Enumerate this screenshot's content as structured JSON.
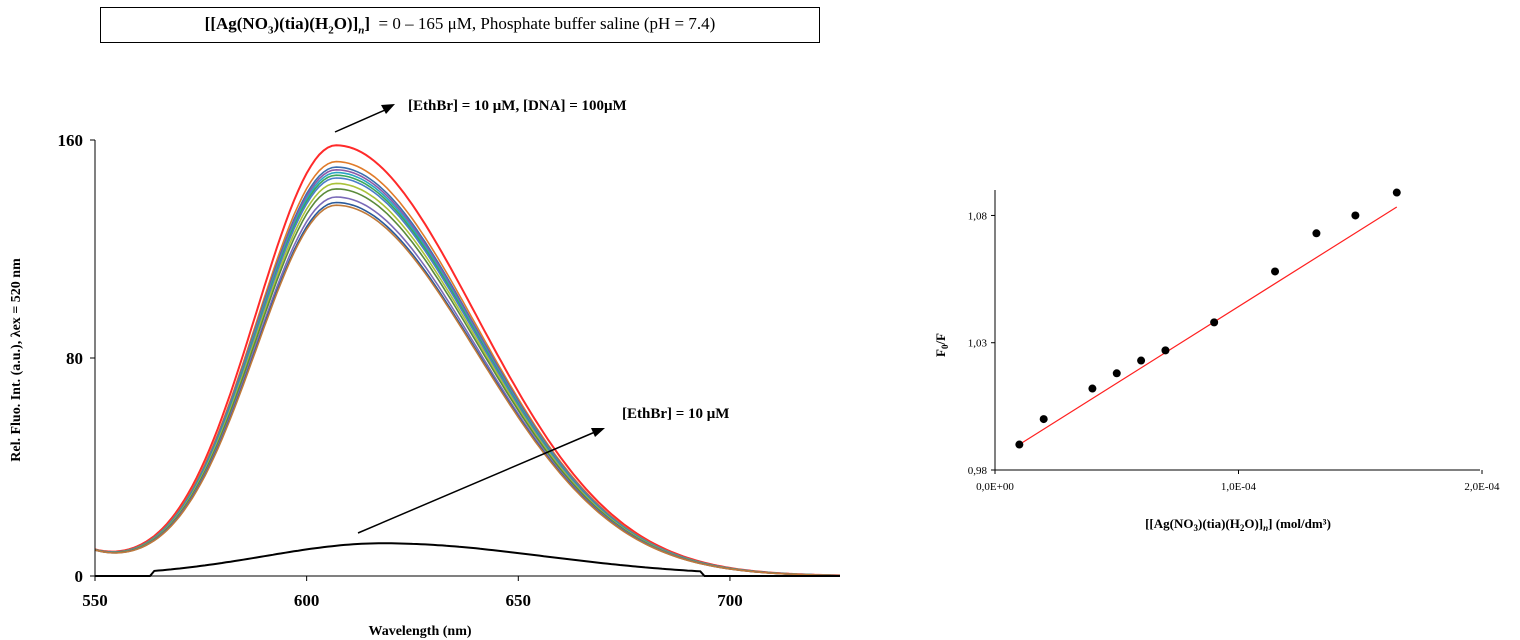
{
  "header": {
    "formula_prefix": "[[Ag(NO",
    "formula_sub1": "3",
    "formula_mid": ")(tia)(H",
    "formula_sub2": "2",
    "formula_suffix": "O)]",
    "formula_sub3": "n",
    "formula_end": "]",
    "conditions": "= 0 – 165 μM, Phosphate buffer saline (pH = 7.4)"
  },
  "chart_data": [
    {
      "type": "line",
      "xlabel": "Wavelength (nm)",
      "ylabel": "Rel. Fluo. Int. (a.u.), λex = 520 nm",
      "xlim": [
        550,
        726
      ],
      "ylim": [
        0,
        160
      ],
      "xticks": [
        "550",
        "600",
        "650",
        "700"
      ],
      "yticks": [
        "0",
        "80",
        "160"
      ],
      "annotations": [
        "[EthBr] = 10 μM, [DNA] = 100μM",
        "[EthBr] = 10 μM"
      ],
      "grid": false,
      "series": [
        {
          "color": "#ff2a2a",
          "peak_x": 607,
          "peak_y": 158
        },
        {
          "color": "#e07b2a",
          "peak_x": 607,
          "peak_y": 152
        },
        {
          "color": "#3b6fb0",
          "peak_x": 607,
          "peak_y": 150
        },
        {
          "color": "#8c5aa8",
          "peak_x": 607,
          "peak_y": 149
        },
        {
          "color": "#2aa5c4",
          "peak_x": 607,
          "peak_y": 148
        },
        {
          "color": "#3aa85a",
          "peak_x": 607,
          "peak_y": 147
        },
        {
          "color": "#4a7ec8",
          "peak_x": 607,
          "peak_y": 146
        },
        {
          "color": "#a9c23a",
          "peak_x": 607,
          "peak_y": 144
        },
        {
          "color": "#5a8a3a",
          "peak_x": 607,
          "peak_y": 142
        },
        {
          "color": "#7a6ab8",
          "peak_x": 607,
          "peak_y": 139
        },
        {
          "color": "#2a5a9a",
          "peak_x": 607,
          "peak_y": 137
        },
        {
          "color": "#c07a3a",
          "peak_x": 607,
          "peak_y": 136
        },
        {
          "color": "#000000",
          "peak_x": 618,
          "peak_y": 12
        }
      ]
    },
    {
      "type": "scatter",
      "xlabel_prefix": "[[Ag(NO",
      "xlabel_sub1": "3",
      "xlabel_mid": ")(tia)(H",
      "xlabel_sub2": "2",
      "xlabel_suffix": "O)]",
      "xlabel_sub3": "n",
      "xlabel_end": "] (mol/dm³)",
      "ylabel_main": "F",
      "ylabel_sub": "0",
      "ylabel_end": "/F",
      "xlim": [
        0,
        0.0002
      ],
      "ylim": [
        0.98,
        1.09
      ],
      "xticks": [
        "0,0E+00",
        "1,0E-04",
        "2,0E-04"
      ],
      "yticks": [
        "0,98",
        "1,03",
        "1,08"
      ],
      "x": [
        1e-05,
        2e-05,
        4e-05,
        5e-05,
        6e-05,
        7e-05,
        9e-05,
        0.000115,
        0.000132,
        0.000148,
        0.000165
      ],
      "y": [
        0.99,
        1.0,
        1.012,
        1.018,
        1.023,
        1.027,
        1.038,
        1.058,
        1.073,
        1.08,
        1.089
      ],
      "fit": {
        "slope": 602,
        "intercept": 0.99,
        "color": "#ff2020"
      },
      "point_color": "#000000"
    }
  ]
}
